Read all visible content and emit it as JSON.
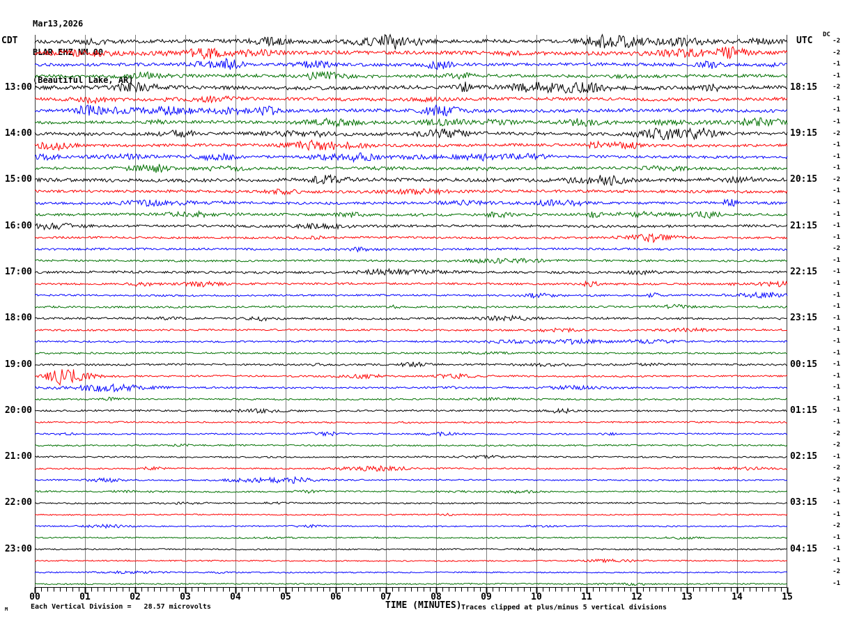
{
  "title": {
    "date": "Mar13,2026",
    "station": "BLAR EHZ NM 00",
    "location": "(Beautiful Lake, AR)"
  },
  "left_axis": {
    "label": "CDT"
  },
  "right_axis": {
    "label": "UTC",
    "dc_header": "DC"
  },
  "x_axis": {
    "title": "TIME (MINUTES)",
    "tick_labels": [
      "00",
      "01",
      "02",
      "03",
      "04",
      "05",
      "06",
      "07",
      "08",
      "09",
      "10",
      "11",
      "12",
      "13",
      "14",
      "15"
    ],
    "minor_ticks_per_minute": 8
  },
  "footer": {
    "left_note": "Each Vertical Division =   28.57 microvolts",
    "right_note": "Traces clipped at plus/minus 5 vertical divisions",
    "corner_mark": "M"
  },
  "colors": {
    "black": "#000000",
    "red": "#fe0000",
    "blue": "#0000fe",
    "green": "#007000",
    "grid": "#7d7d7d",
    "border": "#3a3a3a",
    "background": "#ffffff"
  },
  "chart_data": {
    "type": "line",
    "subtype": "helicorder-seismogram",
    "minutes_per_row": 15,
    "x_range_minutes": [
      0,
      15
    ],
    "vertical_division_microvolts": 28.57,
    "clip_divisions": 5,
    "trace_color_cycle": [
      "black",
      "red",
      "blue",
      "green"
    ],
    "rows": [
      {
        "color": "black",
        "dc": -2,
        "cdt_label": null,
        "utc_label": null,
        "amp": 2.4
      },
      {
        "color": "red",
        "dc": -2,
        "cdt_label": null,
        "utc_label": null,
        "amp": 2.6
      },
      {
        "color": "blue",
        "dc": -1,
        "cdt_label": null,
        "utc_label": null,
        "amp": 2.2
      },
      {
        "color": "green",
        "dc": -1,
        "cdt_label": null,
        "utc_label": null,
        "amp": 2.2
      },
      {
        "color": "black",
        "dc": -2,
        "cdt_label": "13:00",
        "utc_label": "18:15",
        "amp": 2.6
      },
      {
        "color": "red",
        "dc": -1,
        "cdt_label": null,
        "utc_label": null,
        "amp": 2.2
      },
      {
        "color": "blue",
        "dc": -1,
        "cdt_label": null,
        "utc_label": null,
        "amp": 2.2
      },
      {
        "color": "green",
        "dc": -1,
        "cdt_label": null,
        "utc_label": null,
        "amp": 2.0
      },
      {
        "color": "black",
        "dc": -2,
        "cdt_label": "14:00",
        "utc_label": "19:15",
        "amp": 2.2
      },
      {
        "color": "red",
        "dc": -1,
        "cdt_label": null,
        "utc_label": null,
        "amp": 2.0
      },
      {
        "color": "blue",
        "dc": -1,
        "cdt_label": null,
        "utc_label": null,
        "amp": 1.9
      },
      {
        "color": "green",
        "dc": -1,
        "cdt_label": null,
        "utc_label": null,
        "amp": 1.9
      },
      {
        "color": "black",
        "dc": -2,
        "cdt_label": "15:00",
        "utc_label": "20:15",
        "amp": 2.4
      },
      {
        "color": "red",
        "dc": -1,
        "cdt_label": null,
        "utc_label": null,
        "amp": 1.9
      },
      {
        "color": "blue",
        "dc": -1,
        "cdt_label": null,
        "utc_label": null,
        "amp": 1.8
      },
      {
        "color": "green",
        "dc": -1,
        "cdt_label": null,
        "utc_label": null,
        "amp": 1.8
      },
      {
        "color": "black",
        "dc": -1,
        "cdt_label": "16:00",
        "utc_label": "21:15",
        "amp": 1.7
      },
      {
        "color": "red",
        "dc": -1,
        "cdt_label": null,
        "utc_label": null,
        "amp": 1.5
      },
      {
        "color": "blue",
        "dc": -2,
        "cdt_label": null,
        "utc_label": null,
        "amp": 1.5
      },
      {
        "color": "green",
        "dc": -1,
        "cdt_label": null,
        "utc_label": null,
        "amp": 1.4
      },
      {
        "color": "black",
        "dc": -1,
        "cdt_label": "17:00",
        "utc_label": "22:15",
        "amp": 1.6
      },
      {
        "color": "red",
        "dc": -1,
        "cdt_label": null,
        "utc_label": null,
        "amp": 1.4
      },
      {
        "color": "blue",
        "dc": -1,
        "cdt_label": null,
        "utc_label": null,
        "amp": 1.3
      },
      {
        "color": "green",
        "dc": -1,
        "cdt_label": null,
        "utc_label": null,
        "amp": 1.3
      },
      {
        "color": "black",
        "dc": -1,
        "cdt_label": "18:00",
        "utc_label": "23:15",
        "amp": 1.4
      },
      {
        "color": "red",
        "dc": -1,
        "cdt_label": null,
        "utc_label": null,
        "amp": 1.3
      },
      {
        "color": "blue",
        "dc": -1,
        "cdt_label": null,
        "utc_label": null,
        "amp": 1.2
      },
      {
        "color": "green",
        "dc": -1,
        "cdt_label": null,
        "utc_label": null,
        "amp": 1.2
      },
      {
        "color": "black",
        "dc": -1,
        "cdt_label": "19:00",
        "utc_label": "00:15",
        "amp": 1.3
      },
      {
        "color": "red",
        "dc": -1,
        "cdt_label": null,
        "utc_label": null,
        "amp": 1.2
      },
      {
        "color": "blue",
        "dc": -1,
        "cdt_label": null,
        "utc_label": null,
        "amp": 1.2
      },
      {
        "color": "green",
        "dc": -1,
        "cdt_label": null,
        "utc_label": null,
        "amp": 1.1
      },
      {
        "color": "black",
        "dc": -1,
        "cdt_label": "20:00",
        "utc_label": "01:15",
        "amp": 1.2
      },
      {
        "color": "red",
        "dc": -1,
        "cdt_label": null,
        "utc_label": null,
        "amp": 1.1
      },
      {
        "color": "blue",
        "dc": -2,
        "cdt_label": null,
        "utc_label": null,
        "amp": 1.0
      },
      {
        "color": "green",
        "dc": -2,
        "cdt_label": null,
        "utc_label": null,
        "amp": 1.1
      },
      {
        "color": "black",
        "dc": -1,
        "cdt_label": "21:00",
        "utc_label": "02:15",
        "amp": 1.1
      },
      {
        "color": "red",
        "dc": -2,
        "cdt_label": null,
        "utc_label": null,
        "amp": 1.0
      },
      {
        "color": "blue",
        "dc": -2,
        "cdt_label": null,
        "utc_label": null,
        "amp": 1.0
      },
      {
        "color": "green",
        "dc": -1,
        "cdt_label": null,
        "utc_label": null,
        "amp": 1.0
      },
      {
        "color": "black",
        "dc": -1,
        "cdt_label": "22:00",
        "utc_label": "03:15",
        "amp": 1.0
      },
      {
        "color": "red",
        "dc": -1,
        "cdt_label": null,
        "utc_label": null,
        "amp": 0.9
      },
      {
        "color": "blue",
        "dc": -2,
        "cdt_label": null,
        "utc_label": null,
        "amp": 0.9
      },
      {
        "color": "green",
        "dc": -1,
        "cdt_label": null,
        "utc_label": null,
        "amp": 0.9
      },
      {
        "color": "black",
        "dc": -1,
        "cdt_label": "23:00",
        "utc_label": "04:15",
        "amp": 1.0
      },
      {
        "color": "red",
        "dc": -1,
        "cdt_label": null,
        "utc_label": null,
        "amp": 0.9
      },
      {
        "color": "blue",
        "dc": -2,
        "cdt_label": null,
        "utc_label": null,
        "amp": 0.9
      },
      {
        "color": "green",
        "dc": -1,
        "cdt_label": null,
        "utc_label": null,
        "amp": 0.9
      }
    ],
    "events": [
      {
        "row": 29,
        "start_min": 0.15,
        "peak_min": 0.52,
        "end_min": 1.35,
        "peak_amp": 11.5,
        "note": "largest burst on red trace after 19:00 CDT, clipped"
      },
      {
        "row": 30,
        "start_min": 0.0,
        "peak_min": 1.2,
        "end_min": 3.0,
        "peak_amp": 1.6,
        "note": "slightly elevated blue noise"
      },
      {
        "row": 31,
        "start_min": 1.3,
        "peak_min": 1.55,
        "end_min": 1.85,
        "peak_amp": 2.2,
        "note": "small green blip"
      }
    ]
  }
}
